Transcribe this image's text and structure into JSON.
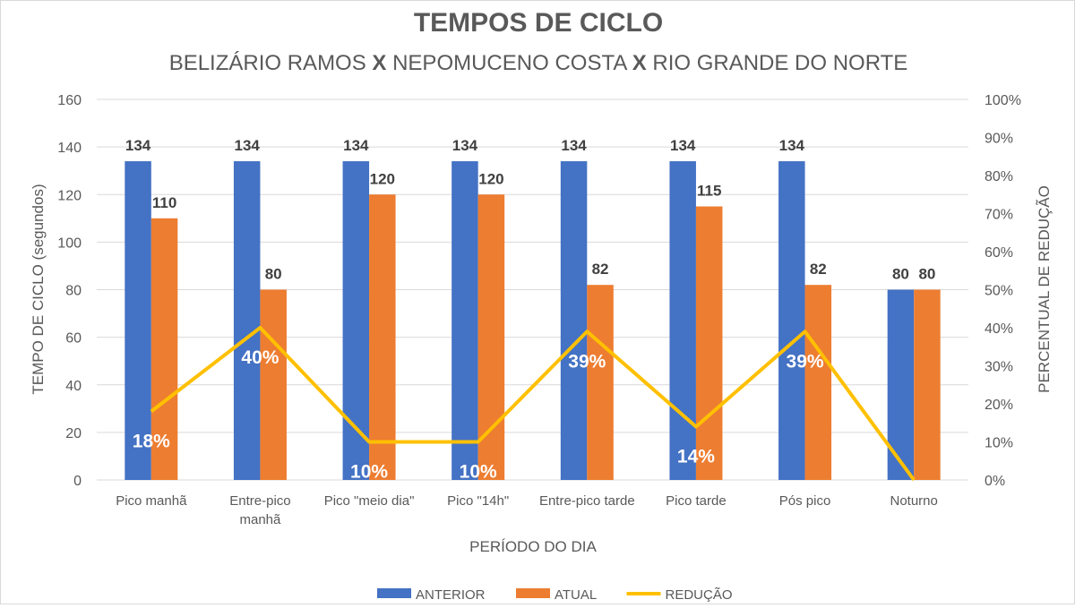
{
  "chart_data": {
    "type": "bar",
    "title": "TEMPOS DE CICLO",
    "subtitle_parts": [
      "BELIZÁRIO RAMOS ",
      "X",
      " NEPOMUCENO COSTA ",
      "X",
      " RIO GRANDE DO NORTE"
    ],
    "xlabel": "PERÍODO DO DIA",
    "ylabel": "TEMPO DE CICLO (segundos)",
    "y2label": "PERCENTUAL DE REDUÇÃO",
    "ylim": [
      0,
      160
    ],
    "yticks": [
      0,
      20,
      40,
      60,
      80,
      100,
      120,
      140,
      160
    ],
    "y2lim": [
      0,
      100
    ],
    "y2ticks": [
      "0%",
      "10%",
      "20%",
      "30%",
      "40%",
      "50%",
      "60%",
      "70%",
      "80%",
      "90%",
      "100%"
    ],
    "grid": true,
    "legend_position": "bottom",
    "categories": [
      [
        "Pico manhã"
      ],
      [
        "Entre-pico",
        "manhã"
      ],
      [
        "Pico \"meio dia\""
      ],
      [
        "Pico \"14h\""
      ],
      [
        "Entre-pico tarde"
      ],
      [
        "Pico tarde"
      ],
      [
        "Pós pico"
      ],
      [
        "Noturno"
      ]
    ],
    "series": [
      {
        "name": "ANTERIOR",
        "type": "bar",
        "axis": "left",
        "color": "#4472c4",
        "values": [
          134,
          134,
          134,
          134,
          134,
          134,
          134,
          80
        ]
      },
      {
        "name": "ATUAL",
        "type": "bar",
        "axis": "left",
        "color": "#ed7d31",
        "values": [
          110,
          80,
          120,
          120,
          82,
          115,
          82,
          80
        ]
      },
      {
        "name": "REDUÇÃO",
        "type": "line",
        "axis": "right",
        "color": "#ffc000",
        "values": [
          18,
          40,
          10,
          10,
          39,
          14,
          39,
          0
        ],
        "labels": [
          "18%",
          "40%",
          "10%",
          "10%",
          "39%",
          "14%",
          "39%",
          null
        ]
      }
    ]
  }
}
